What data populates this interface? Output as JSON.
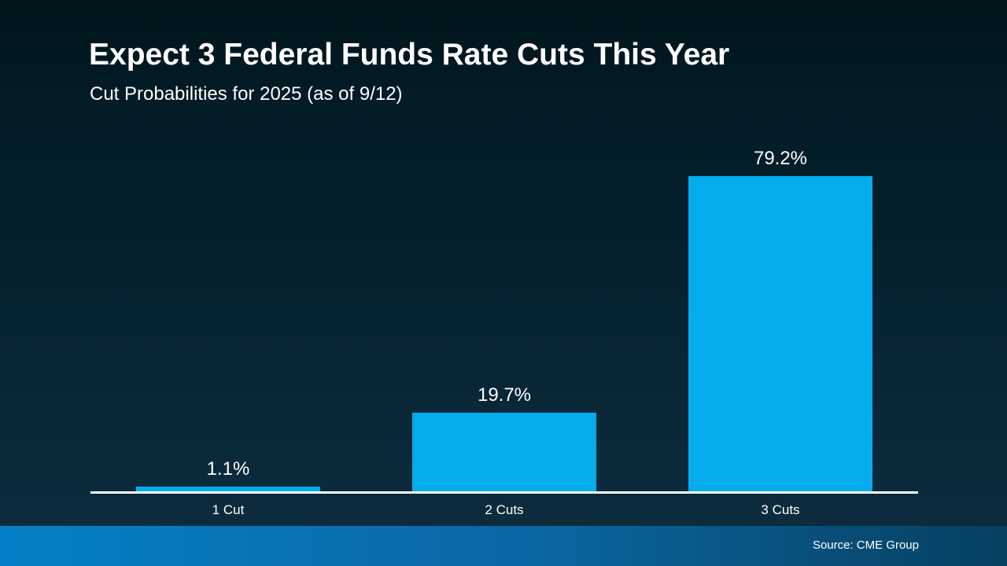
{
  "slide": {
    "title": "Expect 3 Federal Funds Rate Cuts This Year",
    "subtitle": "Cut Probabilities for 2025 (as of 9/12)",
    "source": "Source: CME Group"
  },
  "colors": {
    "bar": "#05acec",
    "axis": "#ffffff",
    "background_top": "#031c26",
    "background_bottom": "#0d2c3e",
    "footer_gradient_left": "#0580c8",
    "footer_gradient_right": "#064060",
    "text": "#ffffff"
  },
  "chart_data": {
    "type": "bar",
    "categories": [
      "1 Cut",
      "2 Cuts",
      "3 Cuts"
    ],
    "values": [
      1.1,
      19.7,
      79.2
    ],
    "value_labels": [
      "1.1%",
      "19.7%",
      "79.2%"
    ],
    "title": "Expect 3 Federal Funds Rate Cuts This Year",
    "subtitle": "Cut Probabilities for 2025 (as of 9/12)",
    "xlabel": "",
    "ylabel": "",
    "ylim": [
      0,
      100
    ],
    "grid": false,
    "legend": false,
    "bar_color": "#05acec",
    "annotation": "Source: CME Group"
  }
}
